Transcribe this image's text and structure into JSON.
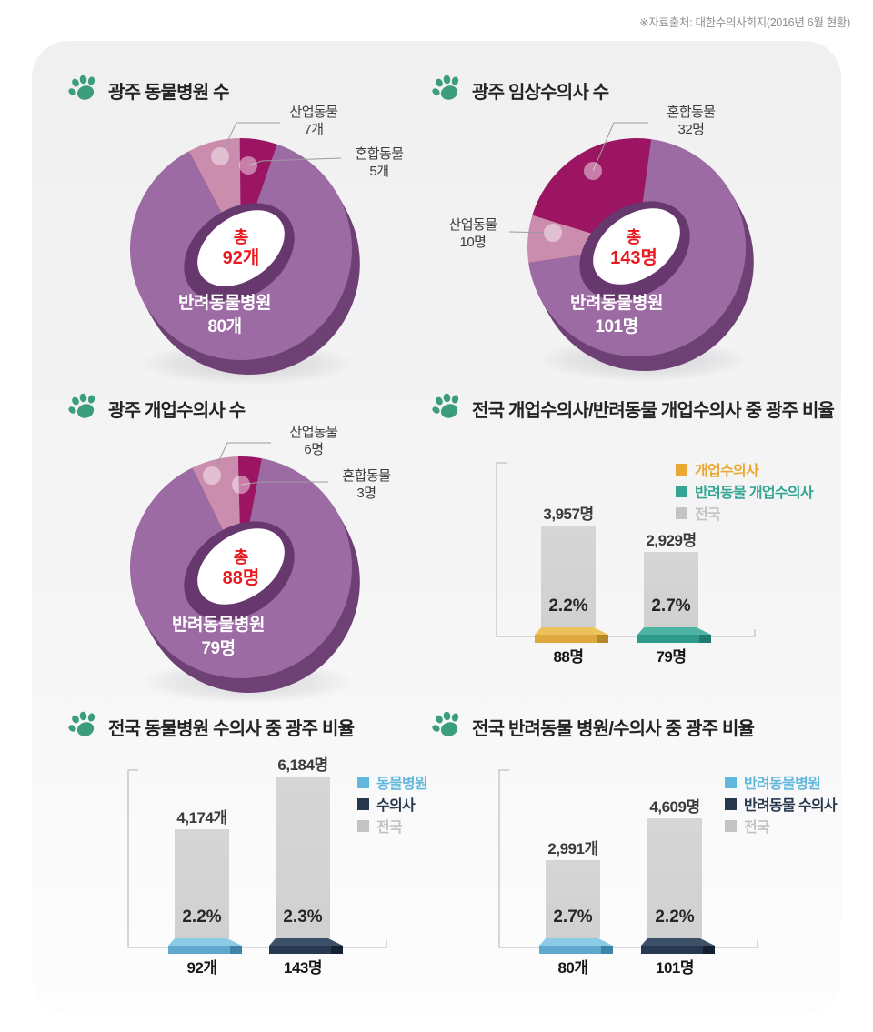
{
  "source_note": "※자료출처: 대한수의사회지(2016년 6월 현황)",
  "brand": {
    "paw_color": "#3c9d7a",
    "accent_red": "#e8191f",
    "national_bar_color": "#d3d3d4"
  },
  "chart_data": [
    {
      "type": "pie",
      "variant": "3d-donut",
      "title": "광주 동물병원 수",
      "total_label": "총",
      "total_value": "92개",
      "total_numeric": 92,
      "slices": [
        {
          "name": "산업동물",
          "value": 7,
          "value_label": "7개",
          "color": "#ca8dae",
          "dark": "#a56f90"
        },
        {
          "name": "혼합동물",
          "value": 5,
          "value_label": "5개",
          "color": "#9b1563",
          "dark": "#730e4a"
        },
        {
          "name": "반려동물병원",
          "value": 80,
          "value_label": "80개",
          "color": "#9d6ba3",
          "dark": "#6e4175"
        }
      ]
    },
    {
      "type": "pie",
      "variant": "3d-donut",
      "title": "광주 임상수의사 수",
      "total_label": "총",
      "total_value": "143명",
      "total_numeric": 143,
      "slices": [
        {
          "name": "산업동물",
          "value": 10,
          "value_label": "10명",
          "color": "#ca8dae",
          "dark": "#a56f90"
        },
        {
          "name": "혼합동물",
          "value": 32,
          "value_label": "32명",
          "color": "#9b1563",
          "dark": "#730e4a"
        },
        {
          "name": "반려동물병원",
          "value": 101,
          "value_label": "101명",
          "color": "#9d6ba3",
          "dark": "#6e4175"
        }
      ]
    },
    {
      "type": "pie",
      "variant": "3d-donut",
      "title": "광주 개업수의사 수",
      "total_label": "총",
      "total_value": "88명",
      "total_numeric": 88,
      "slices": [
        {
          "name": "산업동물",
          "value": 6,
          "value_label": "6명",
          "color": "#ca8dae",
          "dark": "#a56f90"
        },
        {
          "name": "혼합동물",
          "value": 3,
          "value_label": "3명",
          "color": "#9b1563",
          "dark": "#730e4a"
        },
        {
          "name": "반려동물병원",
          "value": 79,
          "value_label": "79명",
          "color": "#9d6ba3",
          "dark": "#6e4175"
        }
      ]
    },
    {
      "type": "bar",
      "variant": "3d-base",
      "title": "전국 개업수의사/반려동물 개업수의사 중 광주 비율",
      "legend": [
        {
          "label": "개업수의사",
          "color": "#eaa833"
        },
        {
          "label": "반려동물 개업수의사",
          "color": "#35a593"
        },
        {
          "label": "전국",
          "color": "#c3c3c4"
        }
      ],
      "bars": [
        {
          "category": "개업수의사",
          "national_value": 3957,
          "national_label": "3,957명",
          "gwangju_pct": 2.2,
          "pct_label": "2.2%",
          "gwangju_value": 88,
          "local_label": "88명",
          "base_top": "#eec25b",
          "base_front": "#dda83e",
          "base_dark": "#b5872b"
        },
        {
          "category": "반려동물 개업수의사",
          "national_value": 2929,
          "national_label": "2,929명",
          "gwangju_pct": 2.7,
          "pct_label": "2.7%",
          "gwangju_value": 79,
          "local_label": "79명",
          "base_top": "#4db4a3",
          "base_front": "#2f9b8a",
          "base_dark": "#1f7a6c"
        }
      ]
    },
    {
      "type": "bar",
      "variant": "3d-base",
      "title": "전국 동물병원 수의사 중 광주 비율",
      "legend": [
        {
          "label": "동물병원",
          "color": "#62b7dd"
        },
        {
          "label": "수의사",
          "color": "#27374d"
        },
        {
          "label": "전국",
          "color": "#c3c3c4"
        }
      ],
      "bars": [
        {
          "category": "동물병원",
          "national_value": 4174,
          "national_label": "4,174개",
          "gwangju_pct": 2.2,
          "pct_label": "2.2%",
          "gwangju_value": 92,
          "local_label": "92개",
          "base_top": "#8ccbe6",
          "base_front": "#5fa9cf",
          "base_dark": "#3f84a8"
        },
        {
          "category": "수의사",
          "national_value": 6184,
          "national_label": "6,184명",
          "gwangju_pct": 2.3,
          "pct_label": "2.3%",
          "gwangju_value": 143,
          "local_label": "143명",
          "base_top": "#3c5068",
          "base_front": "#273850",
          "base_dark": "#141f30"
        }
      ]
    },
    {
      "type": "bar",
      "variant": "3d-base",
      "title": "전국 반려동물 병원/수의사 중 광주 비율",
      "legend": [
        {
          "label": "반려동물병원",
          "color": "#62b7dd"
        },
        {
          "label": "반려동물 수의사",
          "color": "#27374d"
        },
        {
          "label": "전국",
          "color": "#c3c3c4"
        }
      ],
      "bars": [
        {
          "category": "반려동물병원",
          "national_value": 2991,
          "national_label": "2,991개",
          "gwangju_pct": 2.7,
          "pct_label": "2.7%",
          "gwangju_value": 80,
          "local_label": "80개",
          "base_top": "#8ccbe6",
          "base_front": "#5fa9cf",
          "base_dark": "#3f84a8"
        },
        {
          "category": "반려동물 수의사",
          "national_value": 4609,
          "national_label": "4,609명",
          "gwangju_pct": 2.2,
          "pct_label": "2.2%",
          "gwangju_value": 101,
          "local_label": "101명",
          "base_top": "#3c5068",
          "base_front": "#273850",
          "base_dark": "#141f30"
        }
      ]
    }
  ]
}
